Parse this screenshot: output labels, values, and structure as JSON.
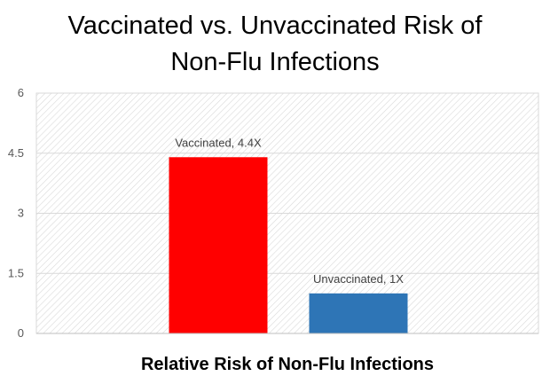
{
  "chart_data": {
    "type": "bar",
    "title_lines": [
      "Vaccinated vs. Unvaccinated Risk of",
      "Non-Flu Infections"
    ],
    "xlabel": "Relative Risk of Non-Flu Infections",
    "ylabel": "",
    "ylim": [
      0,
      6
    ],
    "yticks": [
      "0",
      "1.5",
      "3",
      "4.5",
      "6"
    ],
    "ytick_values": [
      0,
      1.5,
      3,
      4.5,
      6
    ],
    "grid": true,
    "legend": "none",
    "series": [
      {
        "category": "Vaccinated",
        "value": 4.4,
        "label": "Vaccinated, 4.4X",
        "color": "#ff0000"
      },
      {
        "category": "Unvaccinated",
        "value": 1,
        "label": "Unvaccinated, 1X",
        "color": "#2e75b6"
      }
    ],
    "colors": {
      "plot_background_hatch": "#d9d9d9",
      "gridline": "#d9d9d9",
      "axis_line": "#bfbfbf"
    }
  }
}
